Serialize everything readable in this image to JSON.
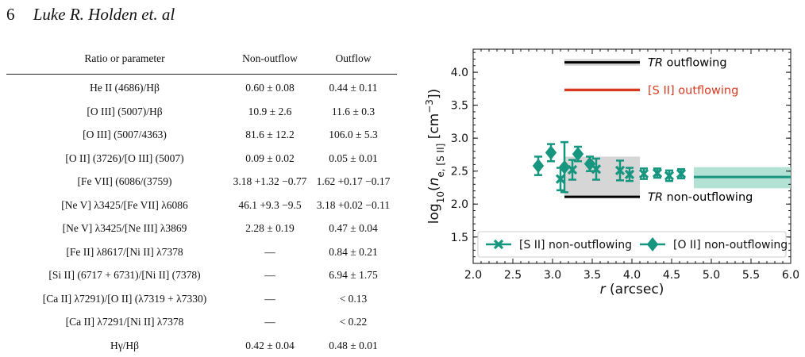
{
  "header": {
    "page_number": "6",
    "authors": "Luke R. Holden et. al"
  },
  "table": {
    "columns": [
      "Ratio or parameter",
      "Non-outflow",
      "Outflow"
    ],
    "rows": [
      [
        "He II (4686)/Hβ",
        "0.60 ± 0.08",
        "0.44 ± 0.11"
      ],
      [
        "[O III] (5007)/Hβ",
        "10.9 ± 2.6",
        "11.6 ± 0.3"
      ],
      [
        "[O III] (5007/4363)",
        "81.6 ± 12.2",
        "106.0 ± 5.3"
      ],
      [
        "[O II] (3726)/[O III] (5007)",
        "0.09 ± 0.02",
        "0.05 ± 0.01"
      ],
      [
        "[Fe VII] (6086/(3759)",
        "3.18 +1.32 −0.77",
        "1.62 +0.17 −0.17"
      ],
      [
        "[Ne V] λ3425/[Fe VII] λ6086",
        "46.1 +9.3 −9.5",
        "3.18 +0.02 −0.11"
      ],
      [
        "[Ne V] λ3425/[Ne III] λ3869",
        "2.28 ± 0.19",
        "0.47 ± 0.04"
      ],
      [
        "[Fe II] λ8617/[Ni II] λ7378",
        "—",
        "0.84 ± 0.21"
      ],
      [
        "[Si II] (6717 + 6731)/[Ni II] (7378)",
        "—",
        "6.94 ± 1.75"
      ],
      [
        "[Ca II] λ7291)/[O II] (λ7319 + λ7330)",
        "—",
        "< 0.13"
      ],
      [
        "[Ca II] λ7291/[Ni II] λ7378",
        "—",
        "< 0.22"
      ],
      [
        "Hγ/Hβ",
        "0.42 ± 0.04",
        "0.48 ± 0.01"
      ]
    ]
  },
  "chart_data": {
    "type": "scatter",
    "xlabel": "r (arcsec)",
    "ylabel": "log10(n_e,[S II] [cm^-3])",
    "xlim": [
      2.0,
      6.0
    ],
    "ylim": [
      1.1,
      4.35
    ],
    "x_ticks": [
      "2.0",
      "2.5",
      "3.0",
      "3.5",
      "4.0",
      "4.5",
      "5.0",
      "5.5",
      "6.0"
    ],
    "y_ticks": [
      "1.5",
      "2.0",
      "2.5",
      "3.0",
      "3.5",
      "4.0"
    ],
    "colors": {
      "teal": "#17967f",
      "red": "#d93a1f",
      "black": "#000000",
      "gray_band": "#cfcfcf",
      "teal_band": "#a6dccd"
    },
    "series": [
      {
        "name": "[S II] non-outflowing",
        "marker": "x",
        "points": [
          {
            "x": 3.1,
            "y": 2.38,
            "err": 0.17
          },
          {
            "x": 3.25,
            "y": 2.52,
            "err": 0.15
          },
          {
            "x": 3.55,
            "y": 2.53,
            "err": 0.16
          },
          {
            "x": 3.85,
            "y": 2.51,
            "err": 0.15
          },
          {
            "x": 3.97,
            "y": 2.45,
            "err": 0.1
          },
          {
            "x": 4.15,
            "y": 2.46,
            "err": 0.08
          },
          {
            "x": 4.32,
            "y": 2.47,
            "err": 0.07
          },
          {
            "x": 4.47,
            "y": 2.43,
            "err": 0.08
          },
          {
            "x": 4.62,
            "y": 2.46,
            "err": 0.07
          }
        ]
      },
      {
        "name": "[O II] non-outflowing",
        "marker": "diamond",
        "points": [
          {
            "x": 2.82,
            "y": 2.58,
            "err": 0.14
          },
          {
            "x": 2.98,
            "y": 2.78,
            "err": 0.13
          },
          {
            "x": 3.15,
            "y": 2.56,
            "err": 0.38
          },
          {
            "x": 3.32,
            "y": 2.76,
            "err": 0.11
          },
          {
            "x": 3.47,
            "y": 2.61,
            "err": 0.11
          }
        ]
      }
    ],
    "reference_lines": [
      {
        "label": "TR outflowing",
        "y": 4.15,
        "x": [
          3.15,
          4.1
        ],
        "band": [
          4.1,
          4.2
        ],
        "color": "black"
      },
      {
        "label": "[S II] outflowing",
        "y": 3.73,
        "x": [
          3.15,
          4.1
        ],
        "band": [
          3.71,
          3.76
        ],
        "color": "red"
      },
      {
        "label": "TR non-outflowing",
        "y": 2.11,
        "x": [
          3.15,
          4.1
        ],
        "band": [
          2.11,
          2.72
        ],
        "color": "black"
      },
      {
        "label": "",
        "y": 2.41,
        "x": [
          4.78,
          6.0
        ],
        "band": [
          2.24,
          2.56
        ],
        "color": "teal"
      }
    ],
    "legend": {
      "position": "bottom",
      "entries": [
        "[S II] non-outflowing",
        "[O II] non-outflowing"
      ]
    }
  }
}
